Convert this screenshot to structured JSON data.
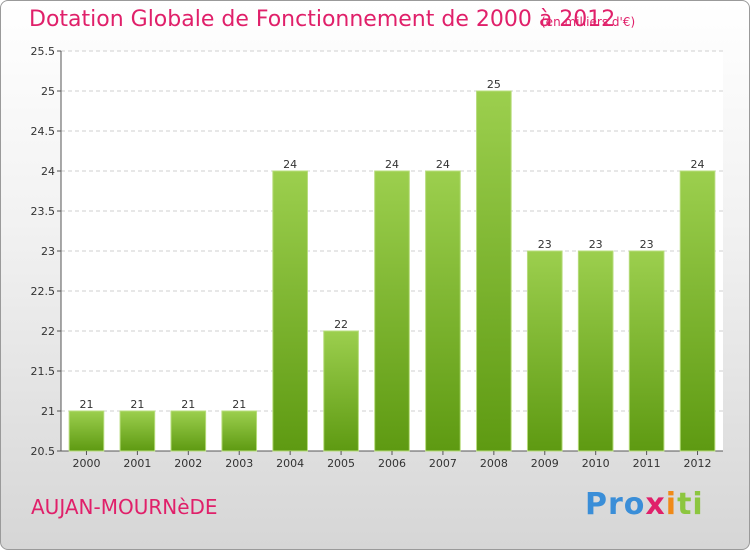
{
  "header": {
    "title": "Dotation Globale de Fonctionnement de 2000 à 2012",
    "unit": "(en milliers d'€)"
  },
  "footer": {
    "town": "AUJAN-MOURNèDE",
    "logo_parts": [
      "Pro",
      "x",
      "i",
      "ti"
    ]
  },
  "colors": {
    "title": "#e0206a",
    "bar_top": "#9ccf4e",
    "bar_bottom": "#5e9a12",
    "grid": "#cfcfcf"
  },
  "chart_data": {
    "type": "bar",
    "title": "Dotation Globale de Fonctionnement de 2000 à 2012",
    "subtitle": "(en milliers d'€)",
    "xlabel": "",
    "ylabel": "",
    "categories": [
      "2000",
      "2001",
      "2002",
      "2003",
      "2004",
      "2005",
      "2006",
      "2007",
      "2008",
      "2009",
      "2010",
      "2011",
      "2012"
    ],
    "values": [
      21,
      21,
      21,
      21,
      24,
      22,
      24,
      24,
      25,
      23,
      23,
      23,
      24
    ],
    "ylim": [
      20.5,
      25.5
    ],
    "yticks": [
      "20.5",
      "21",
      "21.5",
      "22",
      "22.5",
      "23",
      "23.5",
      "24",
      "24.5",
      "25",
      "25.5"
    ],
    "grid": true,
    "legend": "none"
  }
}
